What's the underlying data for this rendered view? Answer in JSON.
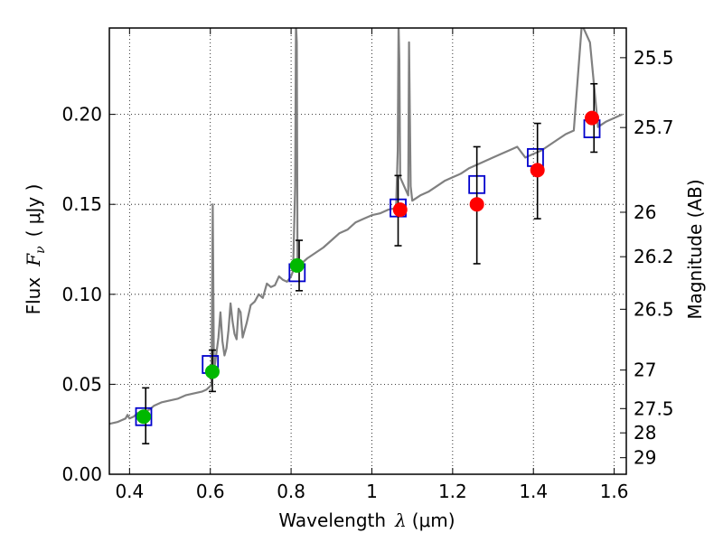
{
  "chart_data": {
    "type": "scatter",
    "xlabel": {
      "text": "Wavelength",
      "symbol": "λ",
      "units": "(μm)"
    },
    "ylabel": {
      "text": "Flux",
      "symbol": "F",
      "subscript": "ν",
      "units": "( μJy )"
    },
    "y2label": "Magnitude (AB)",
    "xlim": [
      0.35,
      1.63
    ],
    "ylim": [
      0.0,
      0.248
    ],
    "x_ticks": [
      {
        "value": 0.4,
        "label": "0.4"
      },
      {
        "value": 0.6,
        "label": "0.6"
      },
      {
        "value": 0.8,
        "label": "0.8"
      },
      {
        "value": 1.0,
        "label": "1"
      },
      {
        "value": 1.2,
        "label": "1.2"
      },
      {
        "value": 1.4,
        "label": "1.4"
      },
      {
        "value": 1.6,
        "label": "1.6"
      }
    ],
    "y_ticks": [
      {
        "value": 0.0,
        "label": "0.00"
      },
      {
        "value": 0.05,
        "label": "0.05"
      },
      {
        "value": 0.1,
        "label": "0.10"
      },
      {
        "value": 0.15,
        "label": "0.15"
      },
      {
        "value": 0.2,
        "label": "0.20"
      }
    ],
    "y2_ticks": [
      {
        "flux": 0.2315,
        "label": "25.5"
      },
      {
        "flux": 0.1927,
        "label": "25.7"
      },
      {
        "flux": 0.1456,
        "label": "26"
      },
      {
        "flux": 0.1209,
        "label": "26.2"
      },
      {
        "flux": 0.0917,
        "label": "26.5"
      },
      {
        "flux": 0.0579,
        "label": "27"
      },
      {
        "flux": 0.0365,
        "label": "27.5"
      },
      {
        "flux": 0.023,
        "label": "28"
      },
      {
        "flux": 0.0092,
        "label": "29"
      }
    ],
    "grid": true,
    "series": [
      {
        "style": "line",
        "color": "#808080",
        "x": [
          0.35,
          0.37,
          0.38,
          0.39,
          0.395,
          0.4,
          0.41,
          0.42,
          0.43,
          0.44,
          0.45,
          0.46,
          0.48,
          0.5,
          0.52,
          0.54,
          0.56,
          0.58,
          0.59,
          0.6,
          0.603,
          0.606,
          0.609,
          0.612,
          0.62,
          0.625,
          0.63,
          0.635,
          0.64,
          0.645,
          0.65,
          0.655,
          0.66,
          0.665,
          0.67,
          0.675,
          0.68,
          0.69,
          0.7,
          0.71,
          0.72,
          0.73,
          0.74,
          0.75,
          0.76,
          0.77,
          0.78,
          0.79,
          0.8,
          0.805,
          0.81,
          0.812,
          0.814,
          0.816,
          0.82,
          0.83,
          0.84,
          0.86,
          0.88,
          0.9,
          0.92,
          0.94,
          0.96,
          0.98,
          1.0,
          1.02,
          1.04,
          1.06,
          1.064,
          1.066,
          1.068,
          1.07,
          1.09,
          1.092,
          1.094,
          1.096,
          1.1,
          1.12,
          1.14,
          1.16,
          1.18,
          1.2,
          1.22,
          1.24,
          1.26,
          1.28,
          1.3,
          1.32,
          1.34,
          1.36,
          1.38,
          1.4,
          1.42,
          1.44,
          1.46,
          1.48,
          1.5,
          1.52,
          1.54,
          1.56,
          1.58,
          1.6,
          1.62
        ],
        "y": [
          0.028,
          0.029,
          0.03,
          0.031,
          0.033,
          0.031,
          0.032,
          0.034,
          0.033,
          0.035,
          0.036,
          0.038,
          0.04,
          0.041,
          0.042,
          0.044,
          0.045,
          0.046,
          0.047,
          0.049,
          0.05,
          0.15,
          0.058,
          0.062,
          0.076,
          0.09,
          0.074,
          0.066,
          0.07,
          0.08,
          0.095,
          0.085,
          0.078,
          0.075,
          0.092,
          0.09,
          0.076,
          0.084,
          0.094,
          0.096,
          0.1,
          0.098,
          0.106,
          0.104,
          0.105,
          0.11,
          0.108,
          0.107,
          0.11,
          0.113,
          0.16,
          0.25,
          0.24,
          0.118,
          0.114,
          0.118,
          0.12,
          0.123,
          0.126,
          0.13,
          0.134,
          0.136,
          0.14,
          0.142,
          0.144,
          0.145,
          0.147,
          0.148,
          0.18,
          0.25,
          0.23,
          0.165,
          0.155,
          0.24,
          0.2,
          0.16,
          0.152,
          0.155,
          0.157,
          0.16,
          0.163,
          0.165,
          0.167,
          0.17,
          0.172,
          0.174,
          0.176,
          0.178,
          0.18,
          0.182,
          0.176,
          0.178,
          0.18,
          0.183,
          0.186,
          0.189,
          0.191,
          0.25,
          0.24,
          0.193,
          0.196,
          0.198,
          0.2
        ]
      },
      {
        "style": "marker",
        "marker": "square",
        "color": "#0000cc",
        "fill": "none",
        "x": [
          0.435,
          0.6,
          0.815,
          1.065,
          1.26,
          1.405,
          1.545
        ],
        "y": [
          0.032,
          0.061,
          0.112,
          0.148,
          0.161,
          0.176,
          0.192
        ]
      },
      {
        "style": "marker",
        "marker": "circle",
        "color": "#00b800",
        "x": [
          0.435,
          0.605,
          0.815
        ],
        "y": [
          0.032,
          0.057,
          0.116
        ]
      },
      {
        "style": "marker",
        "marker": "circle",
        "color": "#ff0000",
        "x": [
          1.07,
          1.26,
          1.41,
          1.545
        ],
        "y": [
          0.147,
          0.15,
          0.169,
          0.198
        ]
      },
      {
        "style": "errorbar",
        "color": "#000000",
        "x": [
          0.44,
          0.605,
          0.82,
          1.065,
          1.26,
          1.41,
          1.55
        ],
        "y": [
          0.032,
          0.057,
          0.116,
          0.147,
          0.15,
          0.169,
          0.198
        ],
        "ylow": [
          0.017,
          0.046,
          0.102,
          0.127,
          0.117,
          0.142,
          0.179
        ],
        "yhigh": [
          0.048,
          0.069,
          0.13,
          0.166,
          0.182,
          0.195,
          0.217
        ]
      }
    ]
  }
}
